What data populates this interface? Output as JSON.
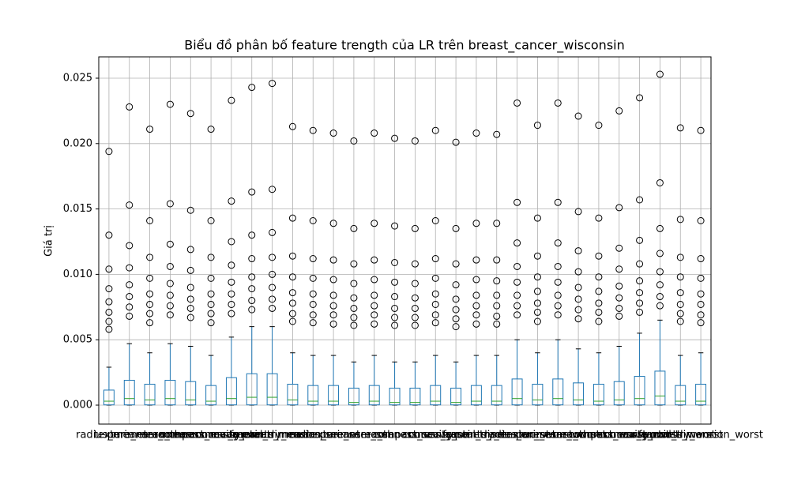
{
  "chart_data": {
    "type": "box",
    "title": "Biểu đồ phân bố feature trength của LR trên breast_cancer_wisconsin",
    "ylabel": "Giá trị",
    "categories": [
      "radius_mean",
      "texture_mean",
      "perimeter_mean",
      "area_mean",
      "smoothness_mean",
      "compactness_mean",
      "concavity_mean",
      "concave points_mean",
      "symmetry_mean",
      "fractal_dimension_mean",
      "radius_se",
      "texture_se",
      "perimeter_se",
      "area_se",
      "smoothness_se",
      "compactness_se",
      "concavity_se",
      "concave points_se",
      "symmetry_se",
      "fractal_dimension_se",
      "radius_worst",
      "texture_worst",
      "perimeter_worst",
      "area_worst",
      "smoothness_worst",
      "compactness_worst",
      "concavity_worst",
      "concave points_worst",
      "symmetry_worst",
      "fractal_dimension_worst"
    ],
    "boxes": [
      {
        "whislo": 0,
        "q1": 2e-05,
        "med": 0.0003,
        "q3": 0.00115,
        "whishi": 0.0029,
        "fliers": [
          0.0194,
          0.013,
          0.0104,
          0.0089,
          0.0079,
          0.0071,
          0.0064,
          0.0058
        ]
      },
      {
        "whislo": 0,
        "q1": 2e-05,
        "med": 0.0005,
        "q3": 0.0019,
        "whishi": 0.0047,
        "fliers": [
          0.0228,
          0.0153,
          0.0122,
          0.0105,
          0.0092,
          0.0083,
          0.0075,
          0.0068
        ]
      },
      {
        "whislo": 0,
        "q1": 2e-05,
        "med": 0.0004,
        "q3": 0.0016,
        "whishi": 0.004,
        "fliers": [
          0.0211,
          0.0141,
          0.0113,
          0.0097,
          0.0085,
          0.0077,
          0.007,
          0.0063
        ]
      },
      {
        "whislo": 0,
        "q1": 2e-05,
        "med": 0.0005,
        "q3": 0.0019,
        "whishi": 0.0047,
        "fliers": [
          0.023,
          0.0154,
          0.0123,
          0.0106,
          0.0093,
          0.0084,
          0.0076,
          0.0069
        ]
      },
      {
        "whislo": 0,
        "q1": 2e-05,
        "med": 0.0004,
        "q3": 0.0018,
        "whishi": 0.0045,
        "fliers": [
          0.0223,
          0.0149,
          0.0119,
          0.0103,
          0.009,
          0.0081,
          0.0074,
          0.0067
        ]
      },
      {
        "whislo": 0,
        "q1": 2e-05,
        "med": 0.0003,
        "q3": 0.0015,
        "whishi": 0.0038,
        "fliers": [
          0.0211,
          0.0141,
          0.0113,
          0.0097,
          0.0085,
          0.0077,
          0.007,
          0.0063
        ]
      },
      {
        "whislo": 0,
        "q1": 2e-05,
        "med": 0.0005,
        "q3": 0.0021,
        "whishi": 0.0052,
        "fliers": [
          0.0233,
          0.0156,
          0.0125,
          0.0107,
          0.0094,
          0.0085,
          0.0077,
          0.007
        ]
      },
      {
        "whislo": 0,
        "q1": 2e-05,
        "med": 0.0006,
        "q3": 0.0024,
        "whishi": 0.006,
        "fliers": [
          0.0243,
          0.0163,
          0.013,
          0.0112,
          0.0098,
          0.0089,
          0.008,
          0.0073
        ]
      },
      {
        "whislo": 0,
        "q1": 2e-05,
        "med": 0.0006,
        "q3": 0.0024,
        "whishi": 0.006,
        "fliers": [
          0.0246,
          0.0165,
          0.0132,
          0.0113,
          0.01,
          0.009,
          0.0081,
          0.0074
        ]
      },
      {
        "whislo": 0,
        "q1": 2e-05,
        "med": 0.0004,
        "q3": 0.0016,
        "whishi": 0.004,
        "fliers": [
          0.0213,
          0.0143,
          0.0114,
          0.0098,
          0.0086,
          0.0078,
          0.007,
          0.0064
        ]
      },
      {
        "whislo": 0,
        "q1": 2e-05,
        "med": 0.0003,
        "q3": 0.0015,
        "whishi": 0.0038,
        "fliers": [
          0.021,
          0.0141,
          0.0112,
          0.0097,
          0.0085,
          0.0077,
          0.0069,
          0.0063
        ]
      },
      {
        "whislo": 0,
        "q1": 2e-05,
        "med": 0.0003,
        "q3": 0.0015,
        "whishi": 0.0038,
        "fliers": [
          0.0208,
          0.0139,
          0.0111,
          0.0096,
          0.0084,
          0.0076,
          0.0069,
          0.0062
        ]
      },
      {
        "whislo": 0,
        "q1": 2e-05,
        "med": 0.0002,
        "q3": 0.0013,
        "whishi": 0.0033,
        "fliers": [
          0.0202,
          0.0135,
          0.0108,
          0.0093,
          0.0082,
          0.0074,
          0.0067,
          0.0061
        ]
      },
      {
        "whislo": 0,
        "q1": 2e-05,
        "med": 0.0003,
        "q3": 0.0015,
        "whishi": 0.0038,
        "fliers": [
          0.0208,
          0.0139,
          0.0111,
          0.0096,
          0.0084,
          0.0076,
          0.0069,
          0.0062
        ]
      },
      {
        "whislo": 0,
        "q1": 2e-05,
        "med": 0.0002,
        "q3": 0.0013,
        "whishi": 0.0033,
        "fliers": [
          0.0204,
          0.0137,
          0.0109,
          0.0094,
          0.0083,
          0.0074,
          0.0067,
          0.0061
        ]
      },
      {
        "whislo": 0,
        "q1": 2e-05,
        "med": 0.0002,
        "q3": 0.0013,
        "whishi": 0.0033,
        "fliers": [
          0.0202,
          0.0135,
          0.0108,
          0.0093,
          0.0082,
          0.0074,
          0.0067,
          0.0061
        ]
      },
      {
        "whislo": 0,
        "q1": 2e-05,
        "med": 0.0003,
        "q3": 0.0015,
        "whishi": 0.0038,
        "fliers": [
          0.021,
          0.0141,
          0.0112,
          0.0097,
          0.0085,
          0.0077,
          0.0069,
          0.0063
        ]
      },
      {
        "whislo": 0,
        "q1": 2e-05,
        "med": 0.0002,
        "q3": 0.0013,
        "whishi": 0.0033,
        "fliers": [
          0.0201,
          0.0135,
          0.0108,
          0.0092,
          0.0081,
          0.0073,
          0.0066,
          0.006
        ]
      },
      {
        "whislo": 0,
        "q1": 2e-05,
        "med": 0.0003,
        "q3": 0.0015,
        "whishi": 0.0038,
        "fliers": [
          0.0208,
          0.0139,
          0.0111,
          0.0096,
          0.0084,
          0.0076,
          0.0069,
          0.0062
        ]
      },
      {
        "whislo": 0,
        "q1": 2e-05,
        "med": 0.0003,
        "q3": 0.0015,
        "whishi": 0.0038,
        "fliers": [
          0.0207,
          0.0139,
          0.0111,
          0.0095,
          0.0084,
          0.0076,
          0.0068,
          0.0062
        ]
      },
      {
        "whislo": 0,
        "q1": 2e-05,
        "med": 0.0005,
        "q3": 0.002,
        "whishi": 0.005,
        "fliers": [
          0.0231,
          0.0155,
          0.0124,
          0.0106,
          0.0094,
          0.0084,
          0.0076,
          0.0069
        ]
      },
      {
        "whislo": 0,
        "q1": 2e-05,
        "med": 0.0004,
        "q3": 0.0016,
        "whishi": 0.004,
        "fliers": [
          0.0214,
          0.0143,
          0.0114,
          0.0098,
          0.0087,
          0.0078,
          0.0071,
          0.0064
        ]
      },
      {
        "whislo": 0,
        "q1": 2e-05,
        "med": 0.0005,
        "q3": 0.002,
        "whishi": 0.005,
        "fliers": [
          0.0231,
          0.0155,
          0.0124,
          0.0106,
          0.0094,
          0.0084,
          0.0076,
          0.0069
        ]
      },
      {
        "whislo": 0,
        "q1": 2e-05,
        "med": 0.0004,
        "q3": 0.0017,
        "whishi": 0.0043,
        "fliers": [
          0.0221,
          0.0148,
          0.0118,
          0.0102,
          0.009,
          0.0081,
          0.0073,
          0.0066
        ]
      },
      {
        "whislo": 0,
        "q1": 2e-05,
        "med": 0.0003,
        "q3": 0.0016,
        "whishi": 0.004,
        "fliers": [
          0.0214,
          0.0143,
          0.0114,
          0.0098,
          0.0087,
          0.0078,
          0.0071,
          0.0064
        ]
      },
      {
        "whislo": 0,
        "q1": 2e-05,
        "med": 0.0004,
        "q3": 0.0018,
        "whishi": 0.0045,
        "fliers": [
          0.0225,
          0.0151,
          0.012,
          0.0104,
          0.0091,
          0.0082,
          0.0074,
          0.0068
        ]
      },
      {
        "whislo": 0,
        "q1": 2e-05,
        "med": 0.0005,
        "q3": 0.0022,
        "whishi": 0.0055,
        "fliers": [
          0.0235,
          0.0157,
          0.0126,
          0.0108,
          0.0095,
          0.0086,
          0.0078,
          0.0071
        ]
      },
      {
        "whislo": 0,
        "q1": 2e-05,
        "med": 0.0007,
        "q3": 0.0026,
        "whishi": 0.0065,
        "fliers": [
          0.0253,
          0.017,
          0.0135,
          0.0116,
          0.0102,
          0.0092,
          0.0083,
          0.0076
        ]
      },
      {
        "whislo": 0,
        "q1": 2e-05,
        "med": 0.0003,
        "q3": 0.0015,
        "whishi": 0.0038,
        "fliers": [
          0.0212,
          0.0142,
          0.0113,
          0.0098,
          0.0086,
          0.0077,
          0.007,
          0.0064
        ]
      },
      {
        "whislo": 0,
        "q1": 2e-05,
        "med": 0.0003,
        "q3": 0.0016,
        "whishi": 0.004,
        "fliers": [
          0.021,
          0.0141,
          0.0112,
          0.0097,
          0.0085,
          0.0077,
          0.0069,
          0.0063
        ]
      }
    ],
    "box_color": "#1f77b4",
    "median_color": "#2ca02c",
    "ylim": [
      -0.00145,
      0.02663
    ],
    "yticks": [
      {
        "value": 0,
        "label": "0.000"
      },
      {
        "value": 0.005,
        "label": "0.005"
      },
      {
        "value": 0.01,
        "label": "0.010"
      },
      {
        "value": 0.015,
        "label": "0.015"
      },
      {
        "value": 0.02,
        "label": "0.020"
      },
      {
        "value": 0.025,
        "label": "0.025"
      }
    ],
    "grid": true
  }
}
